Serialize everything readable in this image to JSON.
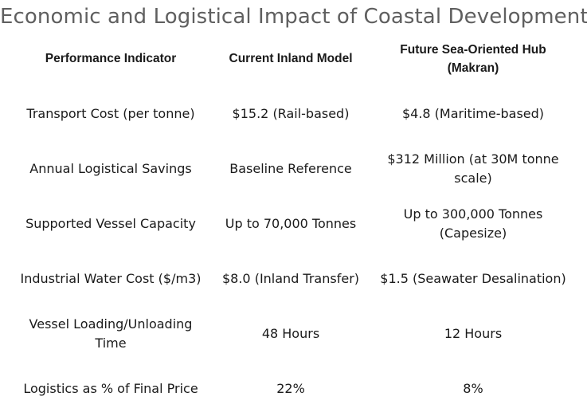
{
  "title": "Economic and Logistical Impact of Coastal Development",
  "table": {
    "headers": [
      "Performance Indicator",
      "Current Inland Model",
      "Future Sea-Oriented Hub (Makran)"
    ],
    "rows": [
      [
        "Transport Cost (per tonne)",
        "$15.2 (Rail-based)",
        "$4.8 (Maritime-based)"
      ],
      [
        "Annual Logistical Savings",
        "Baseline Reference",
        "$312 Million (at 30M tonne scale)"
      ],
      [
        "Supported Vessel Capacity",
        "Up to 70,000 Tonnes",
        "Up to 300,000 Tonnes (Capesize)"
      ],
      [
        "Industrial Water Cost ($/m3)",
        "$8.0 (Inland Transfer)",
        "$1.5 (Seawater Desalination)"
      ],
      [
        "Vessel Loading/Unloading Time",
        "48 Hours",
        "12 Hours"
      ],
      [
        "Logistics as % of Final Price",
        "22%",
        "8%"
      ]
    ]
  }
}
